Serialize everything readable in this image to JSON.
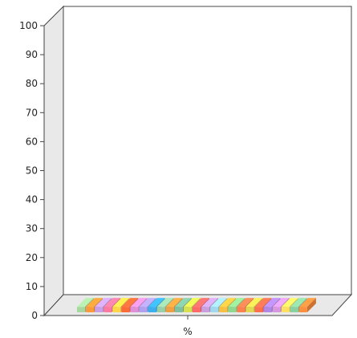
{
  "chart_data": {
    "type": "bar",
    "style": "3d-clustered",
    "categories": [
      "%"
    ],
    "xlabel": "",
    "ylabel": "",
    "ylim": [
      0,
      100
    ],
    "yticks": [
      0,
      10,
      20,
      30,
      40,
      50,
      60,
      70,
      80,
      90,
      100
    ],
    "grid": false,
    "legend": "none",
    "bar_value": 3,
    "bar_colors": [
      "#a8d8a0",
      "#ff9a3a",
      "#c7a0e8",
      "#ff7aa0",
      "#ffd84a",
      "#ff6a3a",
      "#e090d8",
      "#b0a0f0",
      "#3ab0f0",
      "#9ad0a8",
      "#f0a040",
      "#80c0a0",
      "#d8e050",
      "#ff6a6a",
      "#c8a0e0",
      "#a0d8f0",
      "#f8c040",
      "#90d890",
      "#ff8050",
      "#e0d850",
      "#ff7050",
      "#b088e8",
      "#d898e0",
      "#ffe060",
      "#8ad0a0",
      "#ff9040"
    ]
  }
}
